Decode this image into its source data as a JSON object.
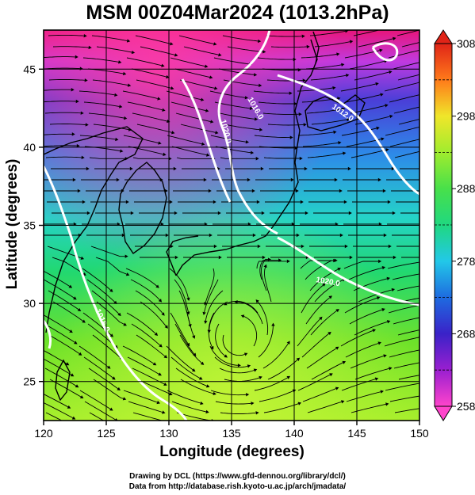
{
  "title": "MSM 00Z04Mar2024 (1013.2hPa)",
  "xlabel": "Longitude (degrees)",
  "ylabel": "Latitude  (degrees)",
  "credits": [
    "Drawing by DCL (https://www.gfd-dennou.org/library/dcl/)",
    "Data from http://database.rish.kyoto-u.ac.jp/arch/jmadata/"
  ],
  "map": {
    "lon_range": [
      120,
      150
    ],
    "lat_range": [
      22.5,
      47.5
    ],
    "lon_ticks": [
      120,
      125,
      130,
      135,
      140,
      145,
      150
    ],
    "lat_ticks": [
      25,
      30,
      35,
      40,
      45
    ],
    "lon_tick_labels": [
      "120",
      "125",
      "130",
      "135",
      "140",
      "145",
      "150"
    ],
    "lat_tick_labels": [
      "25",
      "30",
      "35",
      "40",
      "45"
    ]
  },
  "colorbar": {
    "min": 258,
    "max": 308,
    "labels": [
      "308",
      "298",
      "288",
      "278",
      "268",
      "258"
    ],
    "colors": [
      "#ff44cc",
      "#9a1fd0",
      "#3a22c8",
      "#1e6be0",
      "#22c8e8",
      "#20d880",
      "#7ee82a",
      "#d8f030",
      "#ffd21e",
      "#ff7a1a",
      "#e02418"
    ]
  },
  "isobars": [
    {
      "label": "1016.0"
    },
    {
      "label": "1012.0"
    },
    {
      "label": "1020.0"
    },
    {
      "label": "1020.0"
    },
    {
      "label": "1016.0"
    }
  ],
  "colors": {
    "coast": "#000000",
    "isobar": "#ffffff",
    "grid": "#000000"
  }
}
